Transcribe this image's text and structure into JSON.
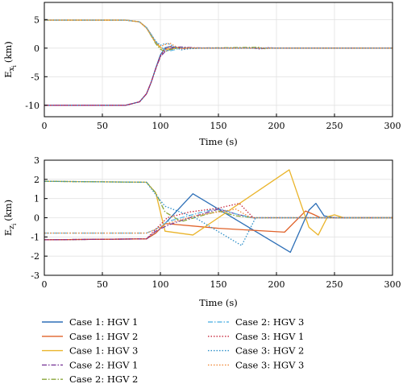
{
  "chart_data": [
    {
      "type": "line",
      "panel": "top",
      "xlabel": "Time (s)",
      "ylabel_main": "E",
      "ylabel_sub": "x",
      "ylabel_subsub": "i",
      "ylabel_unit": "(km)",
      "xlim": [
        0,
        300
      ],
      "ylim": [
        -12,
        8
      ],
      "xticks": [
        "0",
        "50",
        "100",
        "150",
        "200",
        "250",
        "300"
      ],
      "yticks": [
        "5",
        "0",
        "-5",
        "-10"
      ],
      "ytick_values": [
        5,
        0,
        -5,
        -10
      ],
      "grid": true,
      "series": [
        {
          "key": "c1h1",
          "x": [
            0,
            70,
            82,
            88,
            92,
            96,
            100,
            104,
            108,
            115,
            130,
            300
          ],
          "y": [
            -10,
            -10,
            -9.4,
            -8,
            -6,
            -3.5,
            -1.2,
            0.05,
            0.25,
            0.05,
            0,
            0
          ]
        },
        {
          "key": "c1h2",
          "x": [
            0,
            70,
            82,
            88,
            92,
            96,
            100,
            104,
            108,
            115,
            130,
            300
          ],
          "y": [
            4.9,
            4.9,
            4.6,
            3.6,
            2.4,
            1.0,
            0.1,
            -0.2,
            -0.1,
            0.05,
            0,
            0
          ]
        },
        {
          "key": "c1h3",
          "x": [
            0,
            70,
            82,
            88,
            92,
            96,
            100,
            104,
            108,
            115,
            130,
            300
          ],
          "y": [
            4.9,
            4.9,
            4.6,
            3.5,
            2.2,
            0.9,
            0.1,
            -0.25,
            -0.1,
            0,
            0,
            0
          ]
        },
        {
          "key": "c2h1",
          "x": [
            0,
            70,
            82,
            88,
            92,
            96,
            100,
            104,
            108,
            112,
            118,
            130,
            180,
            186,
            192,
            200,
            300
          ],
          "y": [
            -10,
            -10,
            -9.4,
            -8,
            -6,
            -3.6,
            -1.5,
            -0.6,
            -0.2,
            0.15,
            0.2,
            0.05,
            0,
            -0.15,
            0.1,
            0,
            0
          ]
        },
        {
          "key": "c2h2",
          "x": [
            0,
            70,
            82,
            88,
            92,
            96,
            100,
            104,
            108,
            115,
            130,
            185,
            190,
            195,
            300
          ],
          "y": [
            4.9,
            4.9,
            4.6,
            3.6,
            2.2,
            0.8,
            -0.2,
            -0.6,
            -0.3,
            0.05,
            0,
            0.15,
            -0.1,
            0,
            0
          ]
        },
        {
          "key": "c2h3",
          "x": [
            0,
            70,
            82,
            88,
            92,
            96,
            100,
            104,
            108,
            112,
            118,
            130,
            300
          ],
          "y": [
            4.9,
            4.9,
            4.6,
            3.6,
            2.4,
            1.1,
            0.3,
            -0.3,
            -0.5,
            -0.3,
            0.05,
            0,
            0
          ]
        },
        {
          "key": "c3h1",
          "x": [
            0,
            70,
            82,
            88,
            92,
            96,
            100,
            104,
            108,
            112,
            118,
            130,
            300
          ],
          "y": [
            -10,
            -10,
            -9.4,
            -8,
            -6,
            -3.6,
            -1.4,
            -0.2,
            0.3,
            0.15,
            -0.05,
            0,
            0
          ]
        },
        {
          "key": "c3h2",
          "x": [
            0,
            70,
            82,
            88,
            92,
            96,
            100,
            104,
            108,
            112,
            118,
            125,
            135,
            300
          ],
          "y": [
            4.9,
            4.9,
            4.6,
            3.6,
            2.4,
            1.2,
            0.5,
            0.8,
            0.7,
            0.2,
            -0.3,
            -0.1,
            0,
            0
          ]
        },
        {
          "key": "c3h3",
          "x": [
            0,
            70,
            82,
            88,
            92,
            96,
            100,
            104,
            108,
            112,
            118,
            125,
            135,
            300
          ],
          "y": [
            4.9,
            4.9,
            4.6,
            3.5,
            2.3,
            1.0,
            0.3,
            0.6,
            0.9,
            0.4,
            -0.1,
            0.05,
            0,
            0
          ]
        }
      ]
    },
    {
      "type": "line",
      "panel": "bottom",
      "xlabel": "Time (s)",
      "ylabel_main": "E",
      "ylabel_sub": "z",
      "ylabel_subsub": "i",
      "ylabel_unit": "(km)",
      "xlim": [
        0,
        300
      ],
      "ylim": [
        -3,
        3
      ],
      "xticks": [
        "0",
        "50",
        "100",
        "150",
        "200",
        "250",
        "300"
      ],
      "yticks": [
        "3",
        "2",
        "1",
        "0",
        "-1",
        "-2",
        "-3"
      ],
      "ytick_values": [
        3,
        2,
        1,
        0,
        -1,
        -2,
        -3
      ],
      "grid": true,
      "series": [
        {
          "key": "c1h1",
          "x": [
            0,
            88,
            96,
            104,
            128,
            212,
            228,
            234,
            241,
            250,
            300
          ],
          "y": [
            -1.15,
            -1.1,
            -0.8,
            -0.3,
            1.25,
            -1.8,
            0.4,
            0.75,
            0.1,
            0,
            0
          ]
        },
        {
          "key": "c1h2",
          "x": [
            0,
            88,
            96,
            104,
            150,
            207,
            225,
            231,
            238,
            300
          ],
          "y": [
            -1.15,
            -1.1,
            -0.8,
            -0.3,
            -0.55,
            -0.75,
            0.35,
            0.2,
            0,
            0
          ]
        },
        {
          "key": "c1h3",
          "x": [
            0,
            88,
            96,
            104,
            128,
            211,
            228,
            236,
            244,
            250,
            258,
            300
          ],
          "y": [
            1.9,
            1.85,
            1.3,
            -0.7,
            -0.9,
            2.5,
            -0.5,
            -0.9,
            0.05,
            0.15,
            0,
            0
          ]
        },
        {
          "key": "c2h1",
          "x": [
            0,
            88,
            96,
            106,
            120,
            150,
            168,
            180,
            300
          ],
          "y": [
            -1.15,
            -1.1,
            -0.7,
            -0.4,
            -0.1,
            0.45,
            0.15,
            0,
            0
          ]
        },
        {
          "key": "c2h2",
          "x": [
            0,
            88,
            96,
            104,
            118,
            135,
            150,
            165,
            180,
            300
          ],
          "y": [
            1.9,
            1.85,
            1.3,
            0.3,
            -0.2,
            0.1,
            0.35,
            0.1,
            0,
            0
          ]
        },
        {
          "key": "c2h3",
          "x": [
            0,
            88,
            96,
            106,
            130,
            150,
            165,
            178,
            300
          ],
          "y": [
            -0.8,
            -0.8,
            -0.6,
            -0.2,
            0.2,
            0.5,
            0.2,
            0,
            0
          ]
        },
        {
          "key": "c3h1",
          "x": [
            0,
            88,
            96,
            106,
            125,
            150,
            168,
            180,
            300
          ],
          "y": [
            -1.15,
            -1.1,
            -0.6,
            0.0,
            0.3,
            0.5,
            0.75,
            0,
            0
          ]
        },
        {
          "key": "c3h2",
          "x": [
            0,
            88,
            96,
            104,
            130,
            170,
            182,
            300
          ],
          "y": [
            1.9,
            1.85,
            1.2,
            0.6,
            0.0,
            -1.45,
            0,
            0
          ]
        },
        {
          "key": "c3h3",
          "x": [
            0,
            88,
            96,
            106,
            130,
            165,
            178,
            300
          ],
          "y": [
            -0.8,
            -0.8,
            -0.6,
            -0.3,
            0.1,
            0.45,
            0,
            0
          ]
        }
      ]
    }
  ],
  "legend": {
    "placement": "bottom",
    "entries": [
      {
        "key": "c1h1",
        "label": "Case 1: HGV 1",
        "color": "#2d6fb7",
        "dash": "solid"
      },
      {
        "key": "c1h2",
        "label": "Case 1: HGV 2",
        "color": "#e0622a",
        "dash": "solid"
      },
      {
        "key": "c1h3",
        "label": "Case 1: HGV 3",
        "color": "#eab42a",
        "dash": "solid"
      },
      {
        "key": "c2h1",
        "label": "Case 2: HGV 1",
        "color": "#7a3b9a",
        "dash": "dashdot"
      },
      {
        "key": "c2h2",
        "label": "Case 2: HGV 2",
        "color": "#8aa63a",
        "dash": "dashdot"
      },
      {
        "key": "c2h3",
        "label": "Case 2: HGV 3",
        "color": "#62b9e5",
        "dash": "dashdot"
      },
      {
        "key": "c3h1",
        "label": "Case 3: HGV 1",
        "color": "#c8283d",
        "dash": "dotted"
      },
      {
        "key": "c3h2",
        "label": "Case 3: HGV 2",
        "color": "#2d8fc9",
        "dash": "dotted"
      },
      {
        "key": "c3h3",
        "label": "Case 3: HGV 3",
        "color": "#f08a3a",
        "dash": "dotted"
      }
    ]
  }
}
